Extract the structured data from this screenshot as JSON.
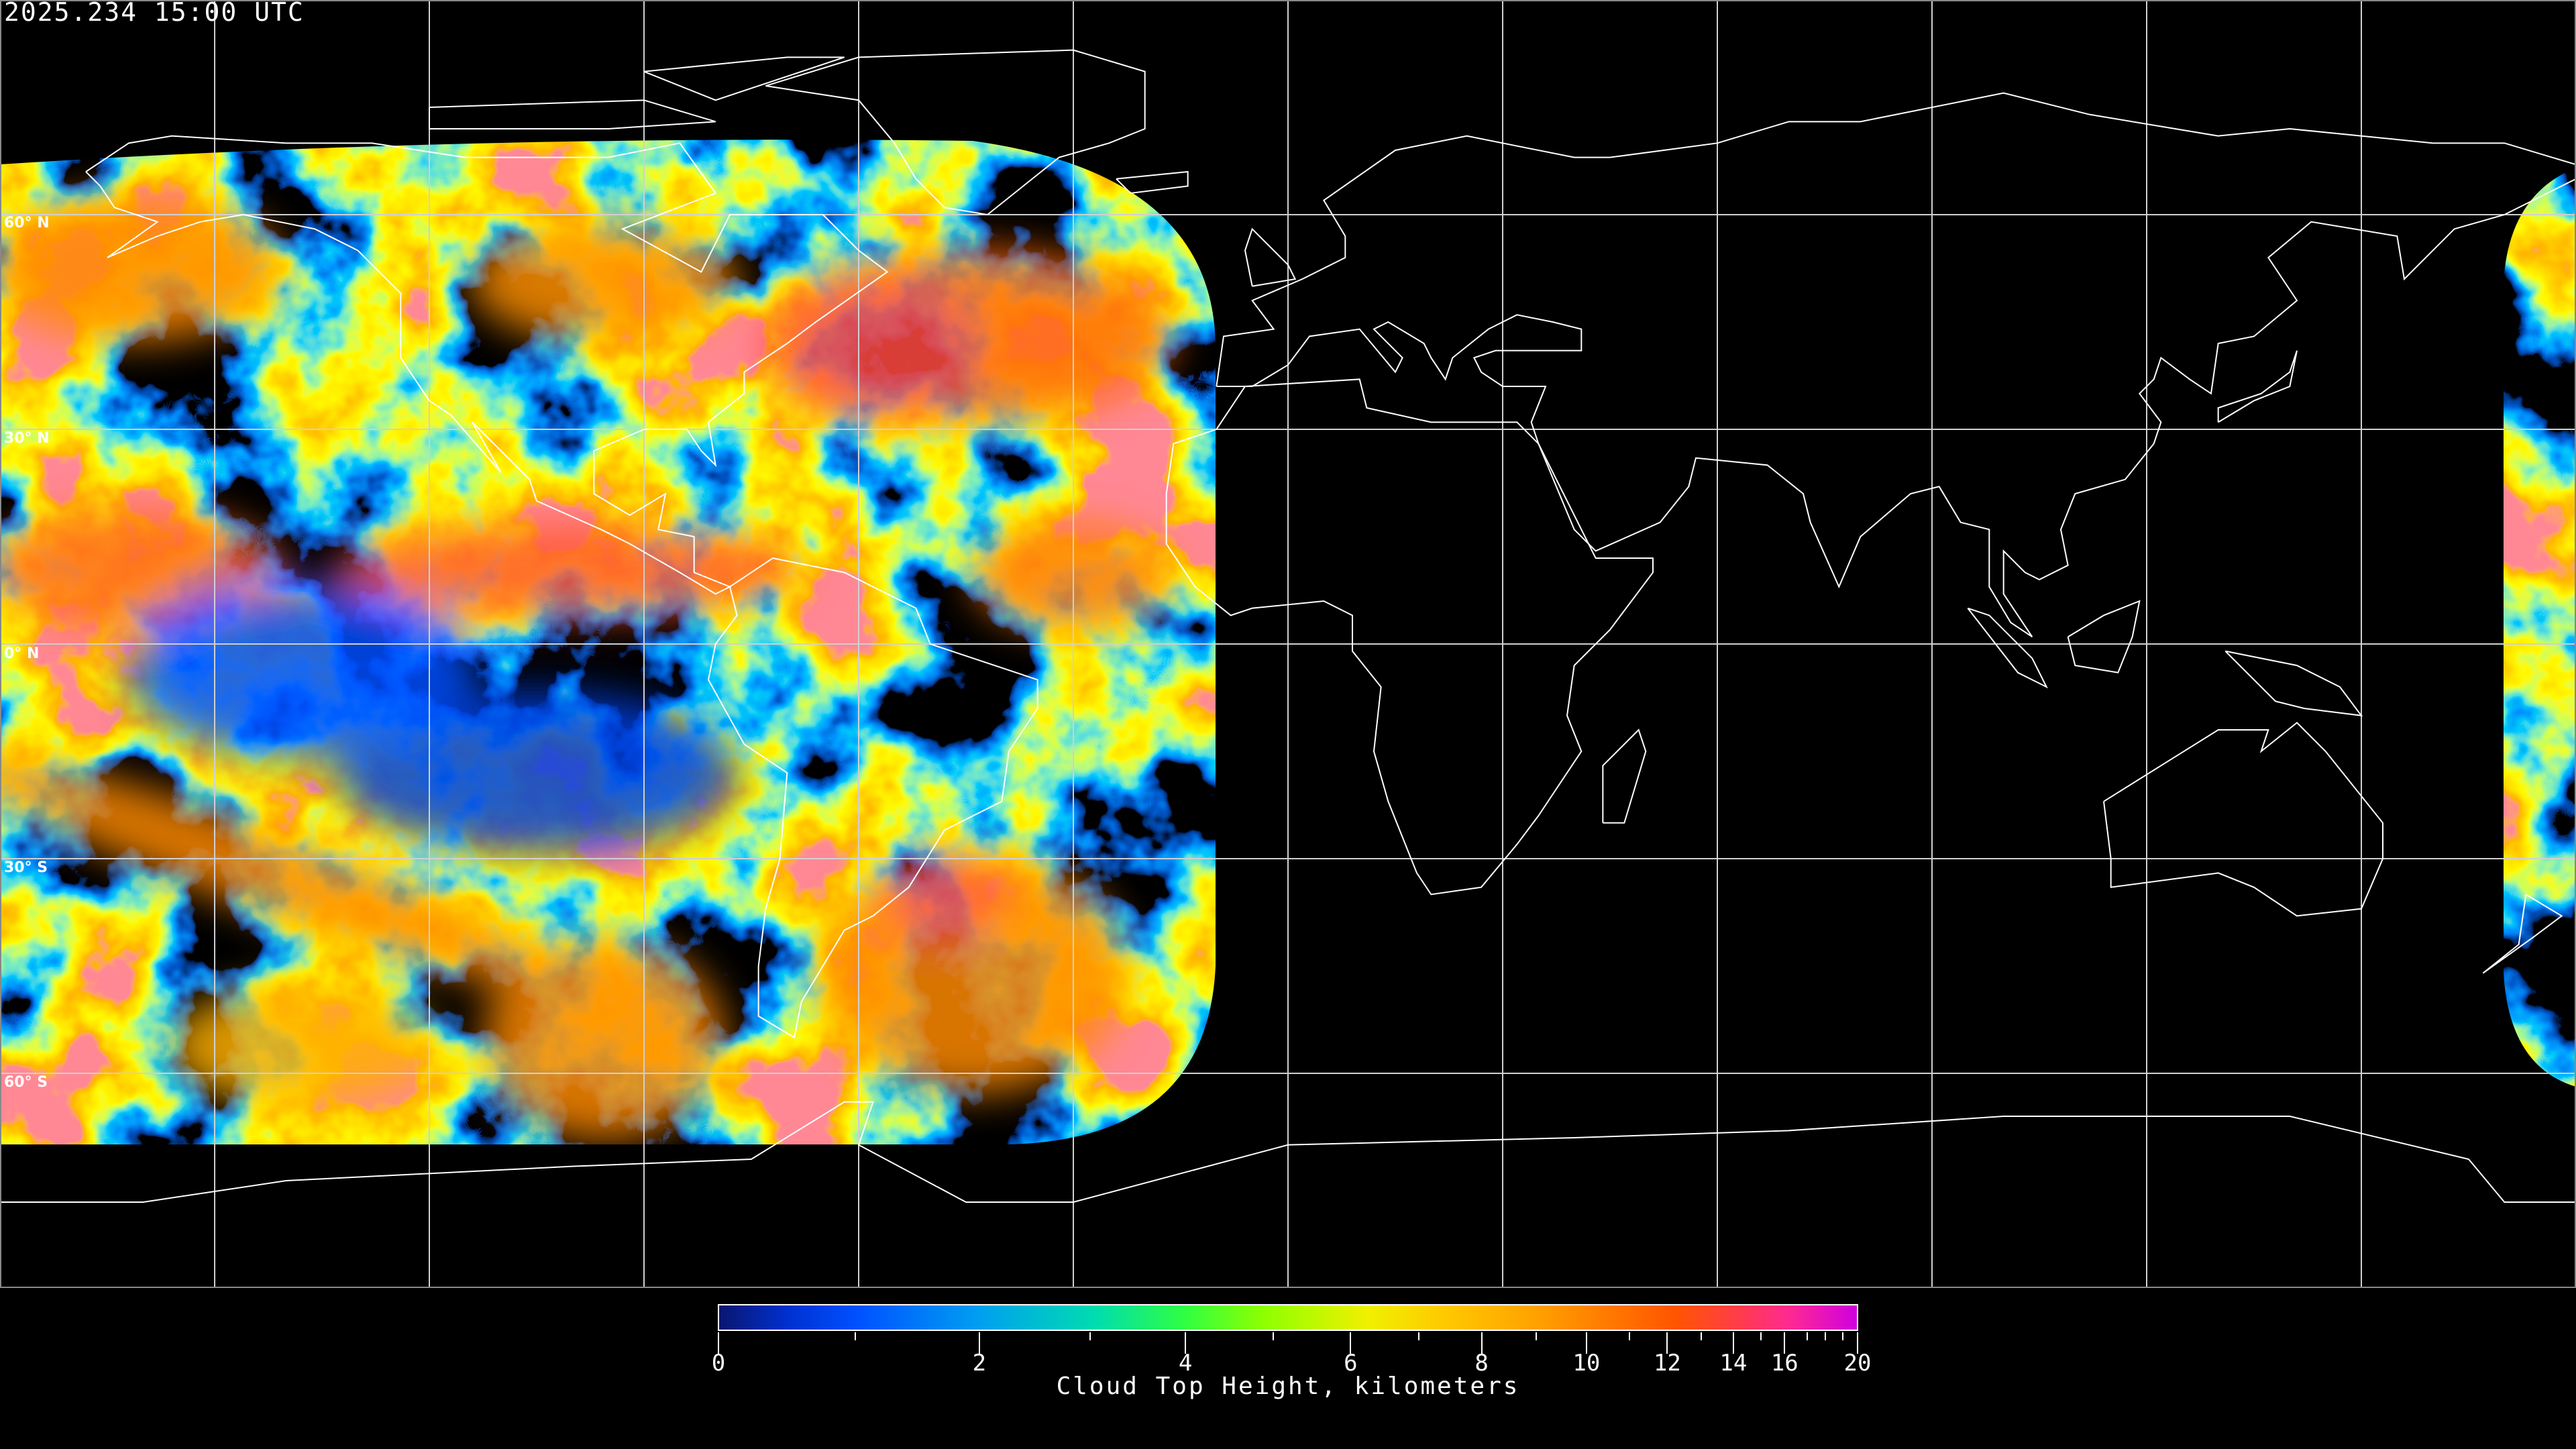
{
  "header": {
    "timestamp": "2025.234 15:00 UTC"
  },
  "map": {
    "projection": "equirectangular",
    "graticule_spacing_deg": 30,
    "lat_labels": [
      "60° N",
      "30° N",
      "0° N",
      "30° S",
      "60° S"
    ],
    "coastline_color": "#ffffff",
    "gridline_color": "#d0d0d0",
    "background_color": "#000000"
  },
  "colorbar": {
    "title": "Cloud Top Height, kilometers",
    "min": 0,
    "max": 20,
    "tick_labels": [
      "0",
      "2",
      "4",
      "6",
      "8",
      "10",
      "12",
      "14",
      "16",
      "20"
    ],
    "colors": [
      "#0a1670",
      "#0050ff",
      "#00a0f0",
      "#00dcb0",
      "#30ff40",
      "#90ff00",
      "#f0f000",
      "#ffc800",
      "#ff9000",
      "#ff5500",
      "#ff2a90",
      "#d000e0"
    ]
  }
}
